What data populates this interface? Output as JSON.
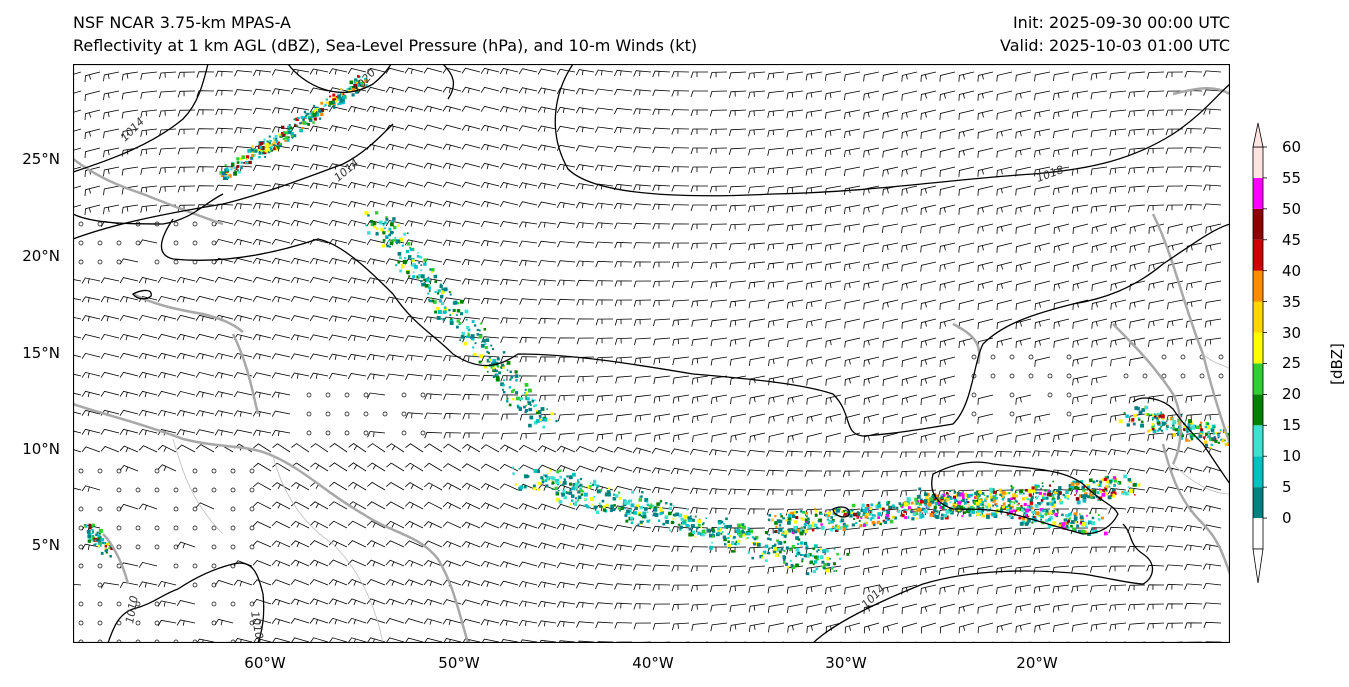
{
  "header": {
    "title_left_1": "NSF NCAR 3.75-km MPAS-A",
    "title_left_2": "Reflectivity at 1 km AGL (dBZ), Sea-Level Pressure (hPa), and 10-m Winds (kt)",
    "title_right_1": "Init: 2025-09-30 00:00 UTC",
    "title_right_2": "Valid: 2025-10-03 01:00 UTC"
  },
  "axes": {
    "lat_labels": [
      "25°N",
      "20°N",
      "15°N",
      "10°N",
      "5°N"
    ],
    "lat_values": [
      25,
      20,
      15,
      10,
      5
    ],
    "lon_labels": [
      "60°W",
      "50°W",
      "40°W",
      "30°W",
      "20°W"
    ],
    "lon_values": [
      -60,
      -50,
      -40,
      -30,
      -20
    ],
    "lon_range": [
      -70,
      -10.5
    ],
    "lat_range": [
      0,
      29.9
    ]
  },
  "isobars": {
    "labels": [
      "1014",
      "1020",
      "1014",
      "1018",
      "1014",
      "1010",
      "1010"
    ]
  },
  "colorbar": {
    "unit": "[dBZ]",
    "ticks": [
      "60",
      "55",
      "50",
      "45",
      "40",
      "35",
      "30",
      "25",
      "20",
      "15",
      "10",
      "5",
      "0"
    ],
    "colors": [
      "#008080",
      "#00c0c0",
      "#40e0d0",
      "#008000",
      "#32cd32",
      "#ffff00",
      "#ffd700",
      "#ff8c00",
      "#cc0000",
      "#8b0000",
      "#ff00ff",
      "#ffe4e1"
    ],
    "under_color": "#ffffff"
  },
  "style": {
    "coast_color": "#a8a8a8",
    "isobar_color": "#000000",
    "barb_color": "#000000"
  }
}
